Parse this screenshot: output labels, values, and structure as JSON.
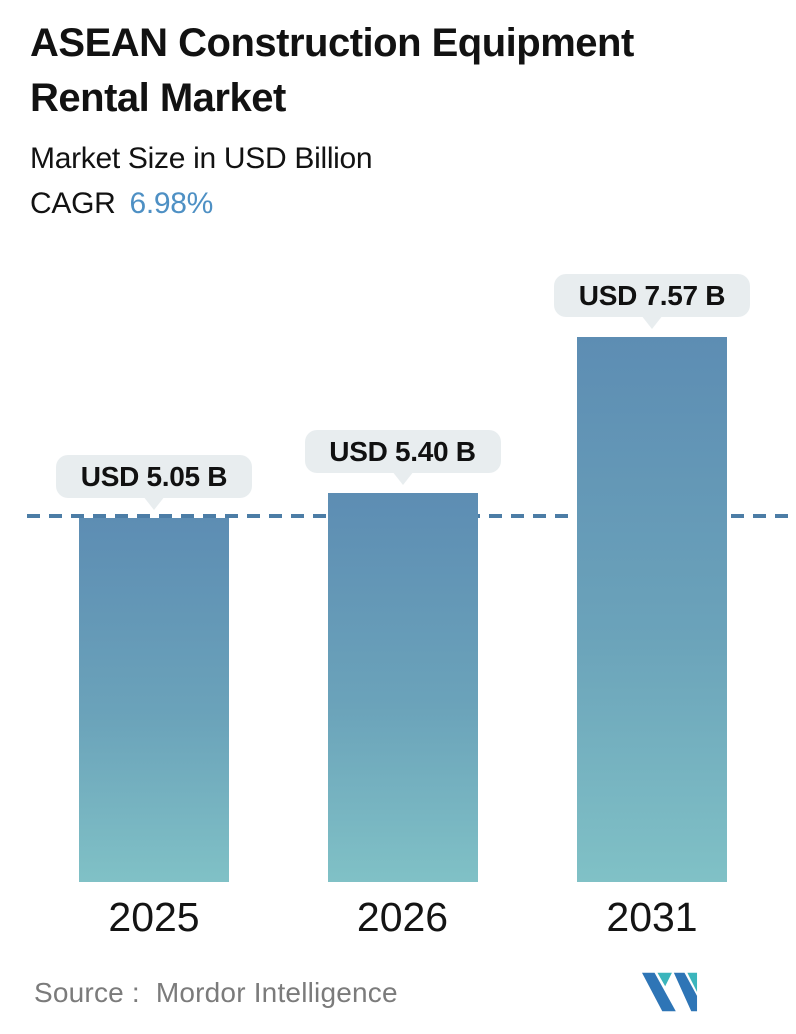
{
  "header": {
    "title": "ASEAN Construction Equipment Rental Market",
    "subtitle": "Market Size in USD Billion",
    "cagr_label": "CAGR",
    "cagr_value": "6.98%"
  },
  "chart_data": {
    "type": "bar",
    "categories": [
      "2025",
      "2026",
      "2031"
    ],
    "values": [
      5.05,
      5.4,
      7.57
    ],
    "data_labels": [
      "USD 5.05 B",
      "USD 5.40 B",
      "USD 7.57 B"
    ],
    "title": "ASEAN Construction Equipment Rental Market",
    "subtitle": "Market Size in USD Billion",
    "unit": "USD Billion",
    "xlabel": "",
    "ylabel": "",
    "ylim": [
      0,
      8
    ],
    "grid": false,
    "legend": false,
    "reference_line": {
      "value": 5.05,
      "style": "dashed"
    }
  },
  "footer": {
    "source": "Source :  Mordor Intelligence",
    "logo": "mordor-intelligence-logo"
  },
  "colors": {
    "text_primary": "#121212",
    "cagr_accent": "#4e90c4",
    "bar_gradient_top": "#5d8db3",
    "bar_gradient_bottom": "#80c1c6",
    "callout_bg": "#e8edef",
    "dashed_line": "#4c7da6",
    "source_text": "#7b7b7b",
    "logo_blue": "#2e75b6",
    "logo_teal": "#3bb5bc"
  }
}
